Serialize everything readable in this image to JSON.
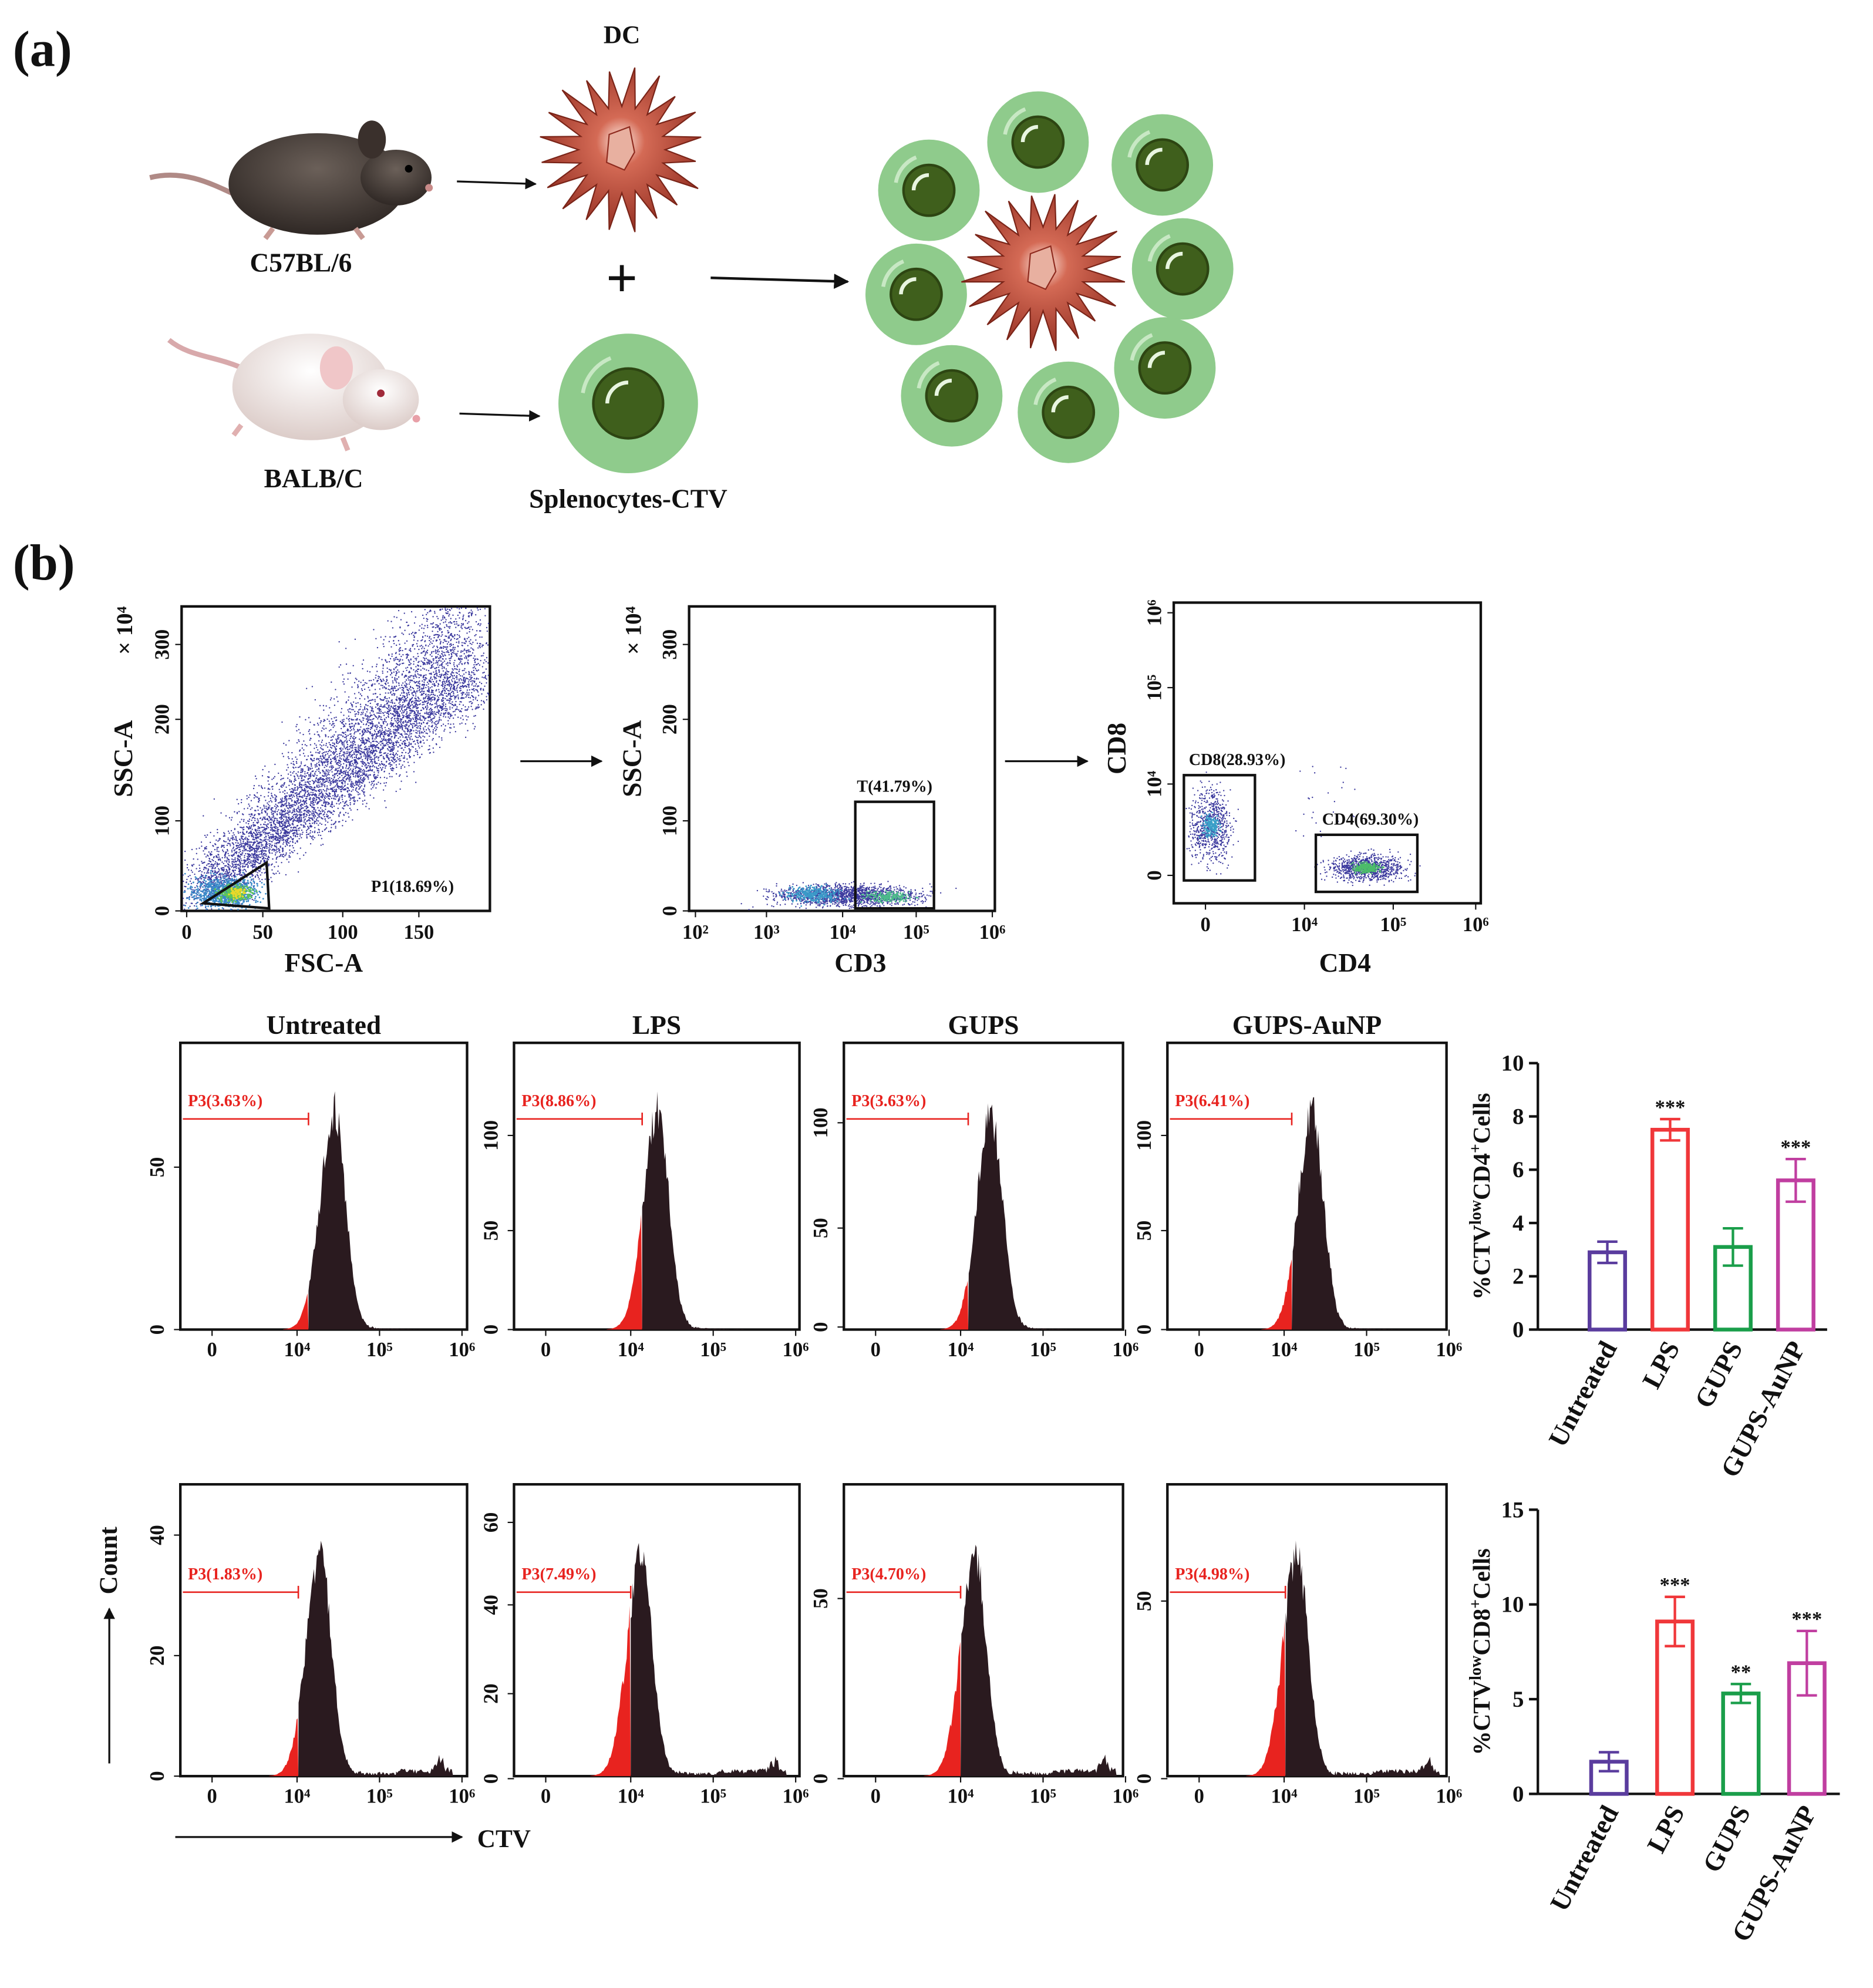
{
  "panel_a": {
    "label": "(a)",
    "dc_label": "DC",
    "mouse_top": "C57BL/6",
    "plus": "+",
    "mouse_bottom": "BALB/C",
    "cell_label": "Splenocytes-CTV"
  },
  "panel_b": {
    "label": "(b)"
  },
  "gating": [
    {
      "x_label": "FSC-A",
      "y_label": "SSC-A",
      "y_multiplier": "× 10⁴",
      "x_ticks": [
        "0",
        "50",
        "100",
        "150"
      ],
      "y_ticks": [
        "0",
        "100",
        "200",
        "300"
      ],
      "gates": [
        "P1(18.69%)"
      ]
    },
    {
      "x_label": "CD3",
      "y_label": "SSC-A",
      "y_multiplier": "× 10⁴",
      "x_ticks": [
        "10²",
        "10³",
        "10⁴",
        "10⁵",
        "10⁶"
      ],
      "y_ticks": [
        "0",
        "100",
        "200",
        "300"
      ],
      "gates": [
        "T(41.79%)"
      ]
    },
    {
      "x_label": "CD4",
      "y_label": "CD8",
      "x_ticks": [
        "0",
        "10⁴",
        "10⁵",
        "10⁶"
      ],
      "y_ticks": [
        "0",
        "10⁴",
        "10⁵",
        "10⁶"
      ],
      "gates": [
        "CD8(28.93%)",
        "CD4(69.30%)"
      ]
    }
  ],
  "histograms": {
    "titles": [
      "Untreated",
      "LPS",
      "GUPS",
      "GUPS-AuNP"
    ],
    "x_ticks": [
      "0",
      "10⁴",
      "10⁵",
      "10⁶"
    ],
    "y_label": "Count",
    "x_label": "CTV",
    "cd4": [
      {
        "gate": "P3(3.63%)",
        "y_ticks": [
          "0",
          "50"
        ]
      },
      {
        "gate": "P3(8.86%)",
        "y_ticks": [
          "0",
          "50",
          "100"
        ]
      },
      {
        "gate": "P3(3.63%)",
        "y_ticks": [
          "0",
          "50",
          "100"
        ]
      },
      {
        "gate": "P3(6.41%)",
        "y_ticks": [
          "0",
          "50",
          "100"
        ]
      }
    ],
    "cd8": [
      {
        "gate": "P3(1.83%)",
        "y_ticks": [
          "0",
          "20",
          "40"
        ]
      },
      {
        "gate": "P3(7.49%)",
        "y_ticks": [
          "0",
          "20",
          "40",
          "60"
        ]
      },
      {
        "gate": "P3(4.70%)",
        "y_ticks": [
          "0",
          "50"
        ]
      },
      {
        "gate": "P3(4.98%)",
        "y_ticks": [
          "0",
          "50"
        ]
      }
    ]
  },
  "chart_data": [
    {
      "type": "bar",
      "ylabel": [
        "%CTV",
        "low",
        "CD4",
        "+",
        "Cells"
      ],
      "categories": [
        "Untreated",
        "LPS",
        "GUPS",
        "GUPS-AuNP"
      ],
      "values": [
        2.9,
        7.5,
        3.1,
        5.6
      ],
      "errors": [
        0.4,
        0.4,
        0.7,
        0.8
      ],
      "colors": [
        "#5a3c9e",
        "#f0373a",
        "#1a9e4a",
        "#c03ea0"
      ],
      "significance": [
        null,
        "***",
        null,
        "***"
      ],
      "ylim": [
        0,
        10
      ],
      "yticks": [
        0,
        2,
        4,
        6,
        8,
        10
      ]
    },
    {
      "type": "bar",
      "ylabel": [
        "%CTV",
        "low",
        "CD8",
        "+",
        "Cells"
      ],
      "categories": [
        "Untreated",
        "LPS",
        "GUPS",
        "GUPS-AuNP"
      ],
      "values": [
        1.7,
        9.1,
        5.3,
        6.9
      ],
      "errors": [
        0.5,
        1.3,
        0.5,
        1.7
      ],
      "colors": [
        "#5a3c9e",
        "#f0373a",
        "#1a9e4a",
        "#c03ea0"
      ],
      "significance": [
        null,
        "***",
        "**",
        "***"
      ],
      "ylim": [
        0,
        15
      ],
      "yticks": [
        0,
        5,
        10,
        15
      ]
    }
  ]
}
